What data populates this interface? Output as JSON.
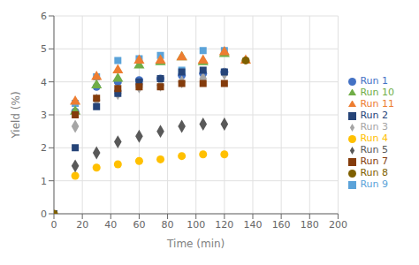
{
  "chart_data": {
    "type": "scatter",
    "xlabel": "Time (min)",
    "ylabel": "Yield (%)",
    "xlim": [
      0,
      200
    ],
    "ylim": [
      0,
      6
    ],
    "xticks": [
      0,
      20,
      40,
      60,
      80,
      100,
      120,
      140,
      160,
      180,
      200
    ],
    "yticks": [
      0,
      1,
      2,
      3,
      4,
      5,
      6
    ],
    "grid": true,
    "legend": "right",
    "series": [
      {
        "name": "Run 1",
        "color": "#4472c4",
        "marker": "circle",
        "x": [
          15,
          30,
          45,
          60,
          75,
          90,
          105,
          120
        ],
        "values": [
          3.1,
          3.85,
          4.0,
          4.05,
          4.1,
          4.2,
          4.25,
          4.3
        ]
      },
      {
        "name": "Run 3",
        "color": "#a5a5a5",
        "marker": "diamond",
        "x": [
          15,
          30,
          45,
          60,
          75,
          90,
          105,
          120
        ],
        "values": [
          2.65,
          3.45,
          3.65,
          3.85,
          3.9,
          4.0,
          4.1,
          4.25
        ]
      },
      {
        "name": "Run 4",
        "color": "#ffc000",
        "marker": "circle",
        "x": [
          15,
          30,
          45,
          60,
          75,
          90,
          105,
          120
        ],
        "values": [
          1.15,
          1.4,
          1.5,
          1.6,
          1.65,
          1.75,
          1.8,
          1.8
        ]
      },
      {
        "name": "Run 9",
        "color": "#5ba3d9",
        "marker": "square",
        "x": [
          15,
          30,
          45,
          60,
          75,
          90,
          105,
          120
        ],
        "values": [
          3.35,
          4.15,
          4.65,
          4.7,
          4.8,
          4.35,
          4.95,
          4.95
        ]
      },
      {
        "name": "Run 10",
        "color": "#70ad47",
        "marker": "triangle",
        "x": [
          15,
          30,
          45,
          60,
          75,
          90,
          105,
          120
        ],
        "values": [
          3.1,
          3.9,
          4.1,
          4.5,
          4.6,
          4.75,
          4.6,
          4.85
        ]
      },
      {
        "name": "Run 11",
        "color": "#ed7d31",
        "marker": "triangle",
        "x": [
          15,
          30,
          45,
          60,
          75,
          90,
          105,
          120,
          135
        ],
        "values": [
          3.4,
          4.15,
          4.35,
          4.65,
          4.65,
          4.75,
          4.65,
          4.9,
          4.65
        ]
      },
      {
        "name": "Run 2",
        "color": "#264478",
        "marker": "square",
        "x": [
          0,
          15,
          30,
          45,
          60,
          75,
          90,
          105,
          120
        ],
        "values": [
          0.0,
          2.0,
          3.25,
          3.65,
          4.0,
          4.1,
          4.3,
          4.35,
          4.3
        ]
      },
      {
        "name": "Run 7",
        "color": "#843c0c",
        "marker": "square",
        "x": [
          15,
          30,
          45,
          60,
          75,
          90,
          105,
          120
        ],
        "values": [
          3.0,
          3.5,
          3.8,
          3.85,
          3.85,
          3.95,
          3.95,
          3.95
        ]
      },
      {
        "name": "Run 5",
        "color": "#595959",
        "marker": "diamond",
        "x": [
          15,
          30,
          45,
          60,
          75,
          90,
          105,
          120
        ],
        "values": [
          1.45,
          1.85,
          2.18,
          2.35,
          2.5,
          2.65,
          2.72,
          2.72
        ]
      },
      {
        "name": "Run 8",
        "color": "#7f6000",
        "marker": "circle",
        "x": [
          0,
          135
        ],
        "values": [
          0.0,
          4.65
        ]
      }
    ]
  }
}
